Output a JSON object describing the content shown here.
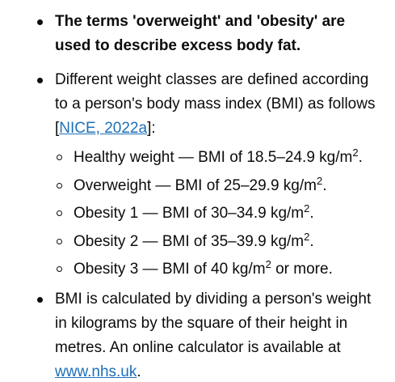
{
  "bullets": [
    {
      "text": "The terms 'overweight' and 'obesity' are used to describe excess body fat."
    },
    {
      "text_before": "Different weight classes are defined according to a person's body mass index (BMI) as follows [",
      "link": "NICE, 2022a",
      "text_after": "]:",
      "sub_items": [
        {
          "label": "Healthy weight — BMI of 18.5–24.9 kg/m",
          "sup": "2",
          "suffix": "."
        },
        {
          "label": "Overweight — BMI of 25–29.9 kg/m",
          "sup": "2",
          "suffix": "."
        },
        {
          "label": "Obesity 1 — BMI of 30–34.9 kg/m",
          "sup": "2",
          "suffix": "."
        },
        {
          "label": "Obesity 2 — BMI of 35–39.9 kg/m",
          "sup": "2",
          "suffix": "."
        },
        {
          "label": "Obesity 3 — BMI of 40 kg/m",
          "sup": "2",
          "suffix": " or more."
        }
      ]
    },
    {
      "text_before": "BMI is calculated by dividing a person's weight in kilograms by the square of their height in metres. An online calculator is available at ",
      "link": "www.nhs.uk",
      "text_after": "."
    }
  ],
  "colors": {
    "text": "#0b0c0c",
    "link": "#1d70b8"
  }
}
